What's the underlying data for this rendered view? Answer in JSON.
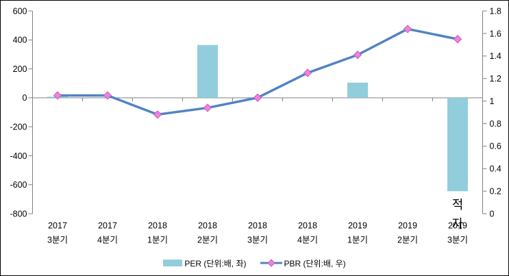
{
  "chart_data": {
    "type": "combo-bar-line",
    "title": "",
    "grid": false,
    "legend_position": "bottom",
    "categories": [
      {
        "line1": "2017",
        "line2": "3분기"
      },
      {
        "line1": "2017",
        "line2": "4분기"
      },
      {
        "line1": "2018",
        "line2": "1분기"
      },
      {
        "line1": "2018",
        "line2": "2분기"
      },
      {
        "line1": "2018",
        "line2": "3분기"
      },
      {
        "line1": "2018",
        "line2": "4분기"
      },
      {
        "line1": "2019",
        "line2": "1분기"
      },
      {
        "line1": "2019",
        "line2": "2분기"
      },
      {
        "line1": "2019",
        "line2": "3분기"
      }
    ],
    "series": [
      {
        "name": "PER (단위:배, 좌)",
        "type": "bar",
        "axis": "left",
        "color": "#92CDDC",
        "values": [
          8,
          null,
          null,
          365,
          null,
          null,
          105,
          null,
          -645
        ]
      },
      {
        "name": "PBR (단위:배, 우)",
        "type": "line",
        "axis": "right",
        "color": "#5183C4",
        "marker": "diamond",
        "marker_color": "#EE82DE",
        "marker_border": "#C05FB8",
        "values": [
          1.05,
          1.05,
          0.88,
          0.94,
          1.03,
          1.25,
          1.41,
          1.64,
          1.55
        ]
      }
    ],
    "left_axis": {
      "min": -800,
      "max": 600,
      "tick_step": 200,
      "ticks": [
        "600",
        "400",
        "200",
        "0",
        "-200",
        "-400",
        "-600",
        "-800"
      ]
    },
    "right_axis": {
      "min": 0,
      "max": 1.8,
      "tick_step": 0.2,
      "ticks": [
        "1.8",
        "1.6",
        "1.4",
        "1.2",
        "1",
        "0.8",
        "0.6",
        "0.4",
        "0.2",
        "0"
      ]
    },
    "annotation": {
      "text": "적자",
      "chars": [
        "적",
        "자"
      ],
      "category_index": 8
    },
    "colors": {
      "axis": "#808080",
      "text": "#000000",
      "background": "#ffffff"
    }
  }
}
